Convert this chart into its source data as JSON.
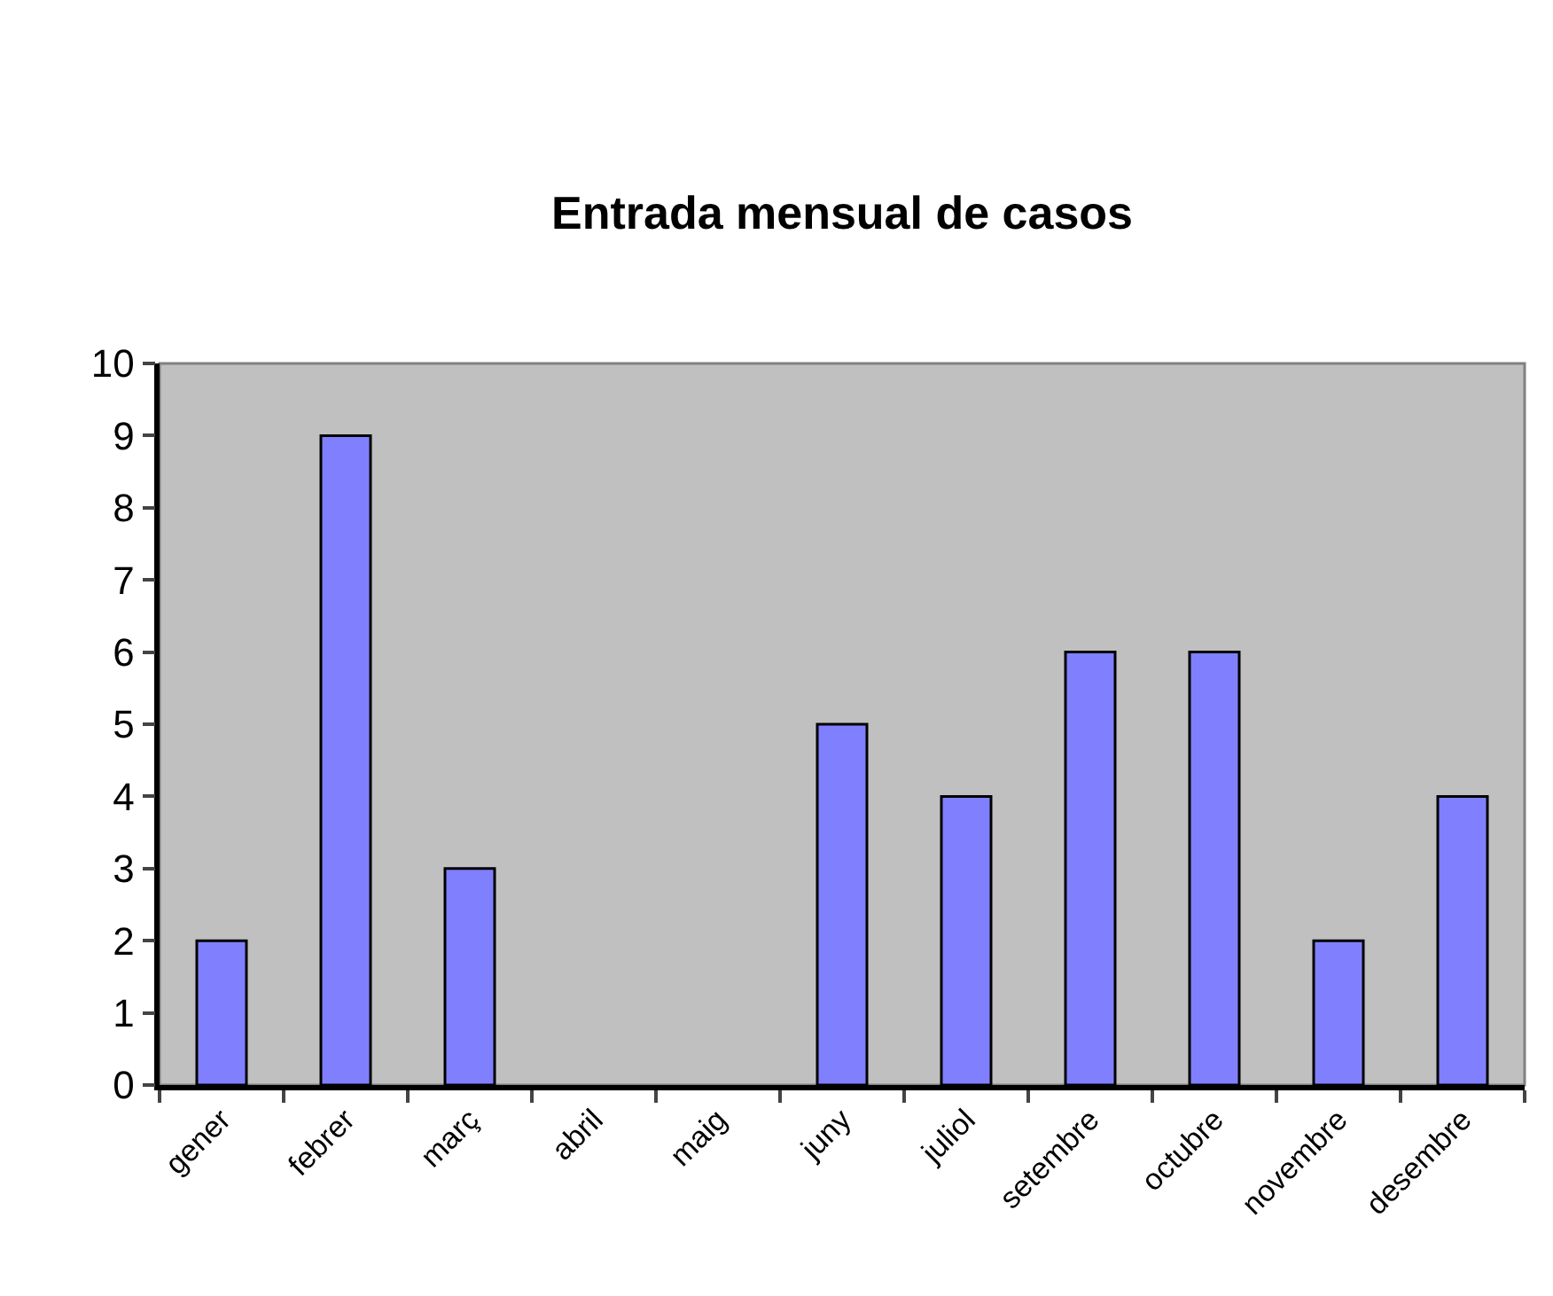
{
  "chart_data": {
    "type": "bar",
    "title": "Entrada mensual de casos",
    "categories": [
      "gener",
      "febrer",
      "març",
      "abril",
      "maig",
      "juny",
      "juliol",
      "setembre",
      "octubre",
      "novembre",
      "desembre"
    ],
    "values": [
      2,
      9,
      3,
      0,
      0,
      5,
      4,
      6,
      6,
      2,
      4
    ],
    "color": "#8080ff",
    "ylim": [
      0,
      10
    ],
    "yticks": [
      0,
      1,
      2,
      3,
      4,
      5,
      6,
      7,
      8,
      9,
      10
    ]
  }
}
